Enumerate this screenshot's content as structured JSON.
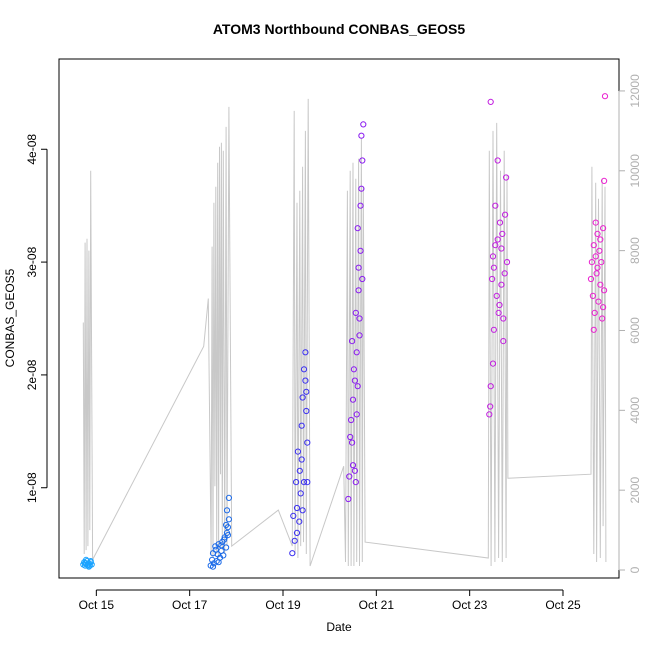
{
  "chart_data": {
    "type": "scatter",
    "title": "ATOM3 Northbound CONBAS_GEOS5",
    "xlabel": "Date",
    "ylabel": "CONBAS_GEOS5",
    "x_unit": "days in October",
    "xlim": [
      14.2,
      26.2
    ],
    "ylim": [
      2e-09,
      4.8e-08
    ],
    "y2lim": [
      -200,
      12800
    ],
    "x_ticks": [
      {
        "value": 15,
        "label": "Oct 15"
      },
      {
        "value": 17,
        "label": "Oct 17"
      },
      {
        "value": 19,
        "label": "Oct 19"
      },
      {
        "value": 21,
        "label": "Oct 21"
      },
      {
        "value": 23,
        "label": "Oct 23"
      },
      {
        "value": 25,
        "label": "Oct 25"
      }
    ],
    "y_ticks": [
      {
        "value": 1e-08,
        "label": "1e-08"
      },
      {
        "value": 2e-08,
        "label": "2e-08"
      },
      {
        "value": 3e-08,
        "label": "3e-08"
      },
      {
        "value": 4e-08,
        "label": "4e-08"
      }
    ],
    "y2_ticks": [
      {
        "value": 0,
        "label": "0"
      },
      {
        "value": 2000,
        "label": "2000"
      },
      {
        "value": 4000,
        "label": "4000"
      },
      {
        "value": 6000,
        "label": "6000"
      },
      {
        "value": 8000,
        "label": "8000"
      },
      {
        "value": 10000,
        "label": "10000"
      },
      {
        "value": 12000,
        "label": "12000"
      }
    ],
    "grid": false,
    "legend": "none",
    "altitude_trace": {
      "axis": "right",
      "color": "#c8c8c8",
      "points": [
        [
          14.72,
          6200
        ],
        [
          14.74,
          400
        ],
        [
          14.76,
          8200
        ],
        [
          14.78,
          500
        ],
        [
          14.8,
          8300
        ],
        [
          14.82,
          600
        ],
        [
          14.84,
          8000
        ],
        [
          14.86,
          1000
        ],
        [
          14.88,
          10000
        ],
        [
          14.92,
          250
        ],
        [
          14.94,
          300
        ],
        [
          17.3,
          5600
        ],
        [
          17.4,
          6800
        ],
        [
          17.46,
          400
        ],
        [
          17.48,
          8100
        ],
        [
          17.5,
          300
        ],
        [
          17.52,
          9200
        ],
        [
          17.54,
          2100
        ],
        [
          17.56,
          9600
        ],
        [
          17.58,
          400
        ],
        [
          17.6,
          10200
        ],
        [
          17.62,
          300
        ],
        [
          17.64,
          10600
        ],
        [
          17.66,
          2400
        ],
        [
          17.68,
          10700
        ],
        [
          17.7,
          500
        ],
        [
          17.72,
          10500
        ],
        [
          17.75,
          400
        ],
        [
          17.78,
          11100
        ],
        [
          17.8,
          600
        ],
        [
          17.84,
          11600
        ],
        [
          17.9,
          600
        ],
        [
          18.9,
          1500
        ],
        [
          19.2,
          600
        ],
        [
          19.24,
          11500
        ],
        [
          19.26,
          400
        ],
        [
          19.3,
          9200
        ],
        [
          19.32,
          300
        ],
        [
          19.36,
          9500
        ],
        [
          19.38,
          600
        ],
        [
          19.42,
          10100
        ],
        [
          19.44,
          700
        ],
        [
          19.48,
          11000
        ],
        [
          19.5,
          400
        ],
        [
          19.54,
          11800
        ],
        [
          19.58,
          100
        ],
        [
          20.3,
          2600
        ],
        [
          20.34,
          200
        ],
        [
          20.38,
          9500
        ],
        [
          20.4,
          100
        ],
        [
          20.44,
          10000
        ],
        [
          20.46,
          100
        ],
        [
          20.5,
          10200
        ],
        [
          20.52,
          100
        ],
        [
          20.56,
          9800
        ],
        [
          20.58,
          200
        ],
        [
          20.62,
          10300
        ],
        [
          20.64,
          100
        ],
        [
          20.68,
          10800
        ],
        [
          20.7,
          200
        ],
        [
          20.72,
          9600
        ],
        [
          20.76,
          700
        ],
        [
          23.4,
          300
        ],
        [
          23.42,
          10500
        ],
        [
          23.46,
          100
        ],
        [
          23.5,
          11000
        ],
        [
          23.54,
          200
        ],
        [
          23.58,
          11200
        ],
        [
          23.62,
          300
        ],
        [
          23.66,
          10000
        ],
        [
          23.7,
          200
        ],
        [
          23.74,
          10500
        ],
        [
          23.78,
          300
        ],
        [
          23.8,
          9900
        ],
        [
          23.82,
          2300
        ],
        [
          25.6,
          2400
        ],
        [
          25.62,
          10100
        ],
        [
          25.66,
          400
        ],
        [
          25.7,
          9700
        ],
        [
          25.72,
          200
        ],
        [
          25.76,
          9300
        ],
        [
          25.8,
          300
        ],
        [
          25.84,
          9800
        ],
        [
          25.86,
          1100
        ],
        [
          25.9,
          9600
        ],
        [
          25.92,
          200
        ]
      ]
    },
    "series": [
      {
        "color": "#1aa3ff",
        "x": [
          14.72,
          14.74,
          14.76,
          14.78,
          14.8,
          14.82,
          14.84,
          14.86,
          14.88,
          14.9,
          14.78,
          14.84,
          14.88,
          14.76,
          14.82
        ],
        "y": [
          3.2e-09,
          3.4e-09,
          3.1e-09,
          3.3e-09,
          3.5e-09,
          3.2e-09,
          3.3e-09,
          3.1e-09,
          3.4e-09,
          3.2e-09,
          3.6e-09,
          3e-09,
          3.5e-09,
          3.3e-09,
          3.1e-09
        ]
      },
      {
        "color": "#1b6ae8",
        "x": [
          17.45,
          17.48,
          17.5,
          17.52,
          17.55,
          17.58,
          17.6,
          17.62,
          17.65,
          17.68,
          17.7,
          17.72,
          17.75,
          17.78,
          17.8,
          17.82,
          17.84,
          17.5,
          17.56,
          17.62,
          17.68,
          17.74,
          17.8,
          17.84,
          17.82,
          17.78
        ],
        "y": [
          3.1e-09,
          3.6e-09,
          4.2e-09,
          3.3e-09,
          4.8e-09,
          3.5e-09,
          4.1e-09,
          5e-09,
          3.8e-09,
          4.4e-09,
          5.2e-09,
          4e-09,
          5.6e-09,
          4.7e-09,
          6e-09,
          6.5e-09,
          9.1e-09,
          3e-09,
          4.5e-09,
          3.4e-09,
          4.9e-09,
          5.4e-09,
          8e-09,
          7.2e-09,
          5.8e-09,
          6.7e-09
        ]
      },
      {
        "color": "#3a2ff0",
        "x": [
          19.2,
          19.22,
          19.25,
          19.28,
          19.3,
          19.32,
          19.35,
          19.38,
          19.4,
          19.42,
          19.45,
          19.48,
          19.5,
          19.52,
          19.3,
          19.36,
          19.42,
          19.48,
          19.5,
          19.45,
          19.52,
          19.4
        ],
        "y": [
          4.2e-09,
          7.5e-09,
          5.3e-09,
          1.05e-08,
          8.2e-09,
          1.32e-08,
          7e-09,
          9.5e-09,
          1.55e-08,
          1.8e-08,
          1.05e-08,
          2.2e-08,
          1.85e-08,
          1.05e-08,
          6e-09,
          1.15e-08,
          8e-09,
          1.95e-08,
          1.68e-08,
          2.05e-08,
          1.4e-08,
          1.25e-08
        ]
      },
      {
        "color": "#8a1bf0",
        "x": [
          20.4,
          20.42,
          20.44,
          20.46,
          20.48,
          20.5,
          20.52,
          20.54,
          20.56,
          20.58,
          20.6,
          20.62,
          20.64,
          20.66,
          20.68,
          20.7,
          20.5,
          20.56,
          20.62,
          20.66,
          20.68,
          20.7,
          20.72,
          20.58,
          20.64,
          20.48,
          20.54,
          20.6
        ],
        "y": [
          9e-09,
          1.1e-08,
          1.45e-08,
          1.6e-08,
          2.3e-08,
          1.78e-08,
          2.05e-08,
          1.95e-08,
          2.55e-08,
          2.2e-08,
          3.3e-08,
          2.95e-08,
          2.5e-08,
          3.5e-08,
          4.12e-08,
          3.9e-08,
          1.2e-08,
          1.05e-08,
          2.75e-08,
          3.1e-08,
          3.65e-08,
          2.85e-08,
          4.22e-08,
          1.65e-08,
          2.35e-08,
          1.4e-08,
          1.15e-08,
          1.9e-08
        ]
      },
      {
        "color": "#c21ee0",
        "x": [
          23.42,
          23.45,
          23.48,
          23.5,
          23.52,
          23.55,
          23.58,
          23.6,
          23.62,
          23.65,
          23.68,
          23.7,
          23.72,
          23.75,
          23.78,
          23.8,
          23.45,
          23.5,
          23.55,
          23.6,
          23.64,
          23.68,
          23.72,
          23.76,
          23.44,
          23.52
        ],
        "y": [
          1.65e-08,
          1.9e-08,
          2.85e-08,
          3.05e-08,
          2.4e-08,
          3.15e-08,
          2.7e-08,
          3.2e-08,
          2.55e-08,
          3.35e-08,
          2.8e-08,
          3.25e-08,
          2.3e-08,
          2.9e-08,
          3.75e-08,
          3e-08,
          4.42e-08,
          2.1e-08,
          3.5e-08,
          3.9e-08,
          2.62e-08,
          3.12e-08,
          2.5e-08,
          3.42e-08,
          1.72e-08,
          2.95e-08
        ]
      },
      {
        "color": "#ea1fd0",
        "x": [
          25.6,
          25.62,
          25.64,
          25.66,
          25.68,
          25.7,
          25.72,
          25.74,
          25.76,
          25.78,
          25.8,
          25.82,
          25.84,
          25.86,
          25.88,
          25.9,
          25.66,
          25.74,
          25.8,
          25.86,
          25.88,
          25.7
        ],
        "y": [
          2.85e-08,
          3e-08,
          2.7e-08,
          3.15e-08,
          2.55e-08,
          3.05e-08,
          2.9e-08,
          3.25e-08,
          2.65e-08,
          3.1e-08,
          2.8e-08,
          3e-08,
          2.5e-08,
          3.3e-08,
          3.72e-08,
          4.47e-08,
          2.4e-08,
          2.95e-08,
          3.2e-08,
          2.6e-08,
          2.75e-08,
          3.35e-08
        ]
      }
    ]
  }
}
